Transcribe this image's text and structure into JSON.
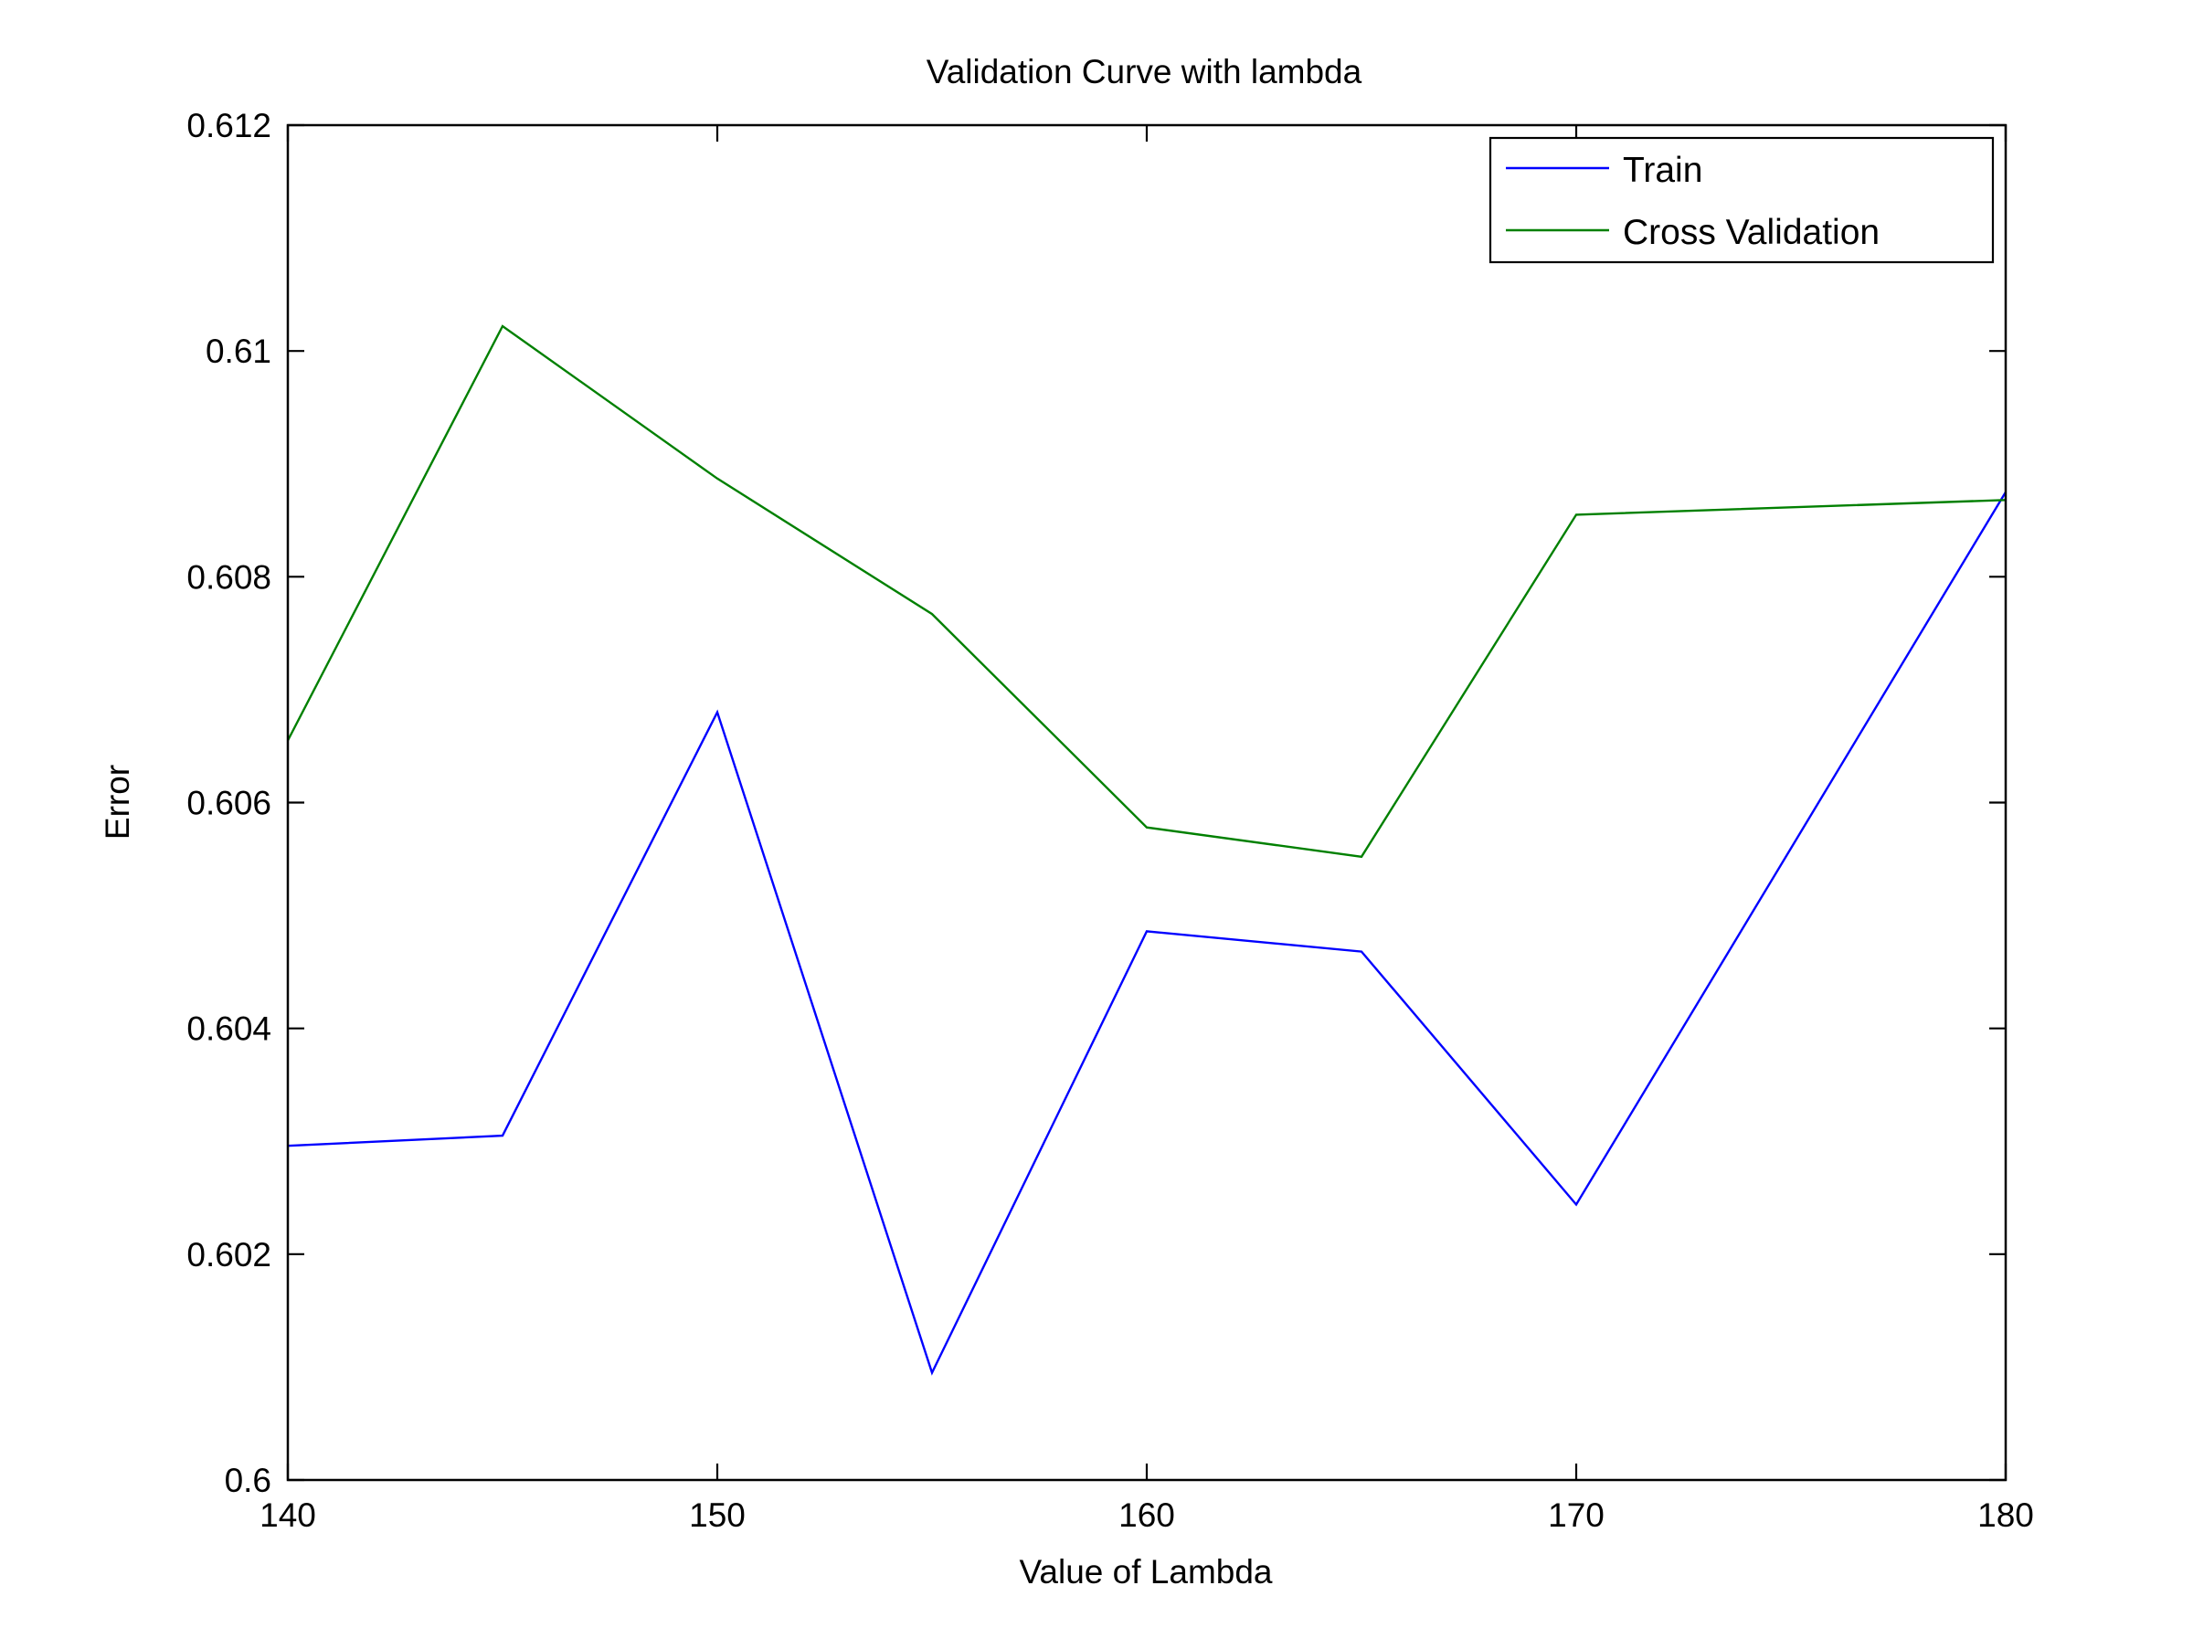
{
  "chart_data": {
    "type": "line",
    "title": "Validation Curve with lambda",
    "xlabel": "Value of Lambda",
    "ylabel": "Error",
    "xlim": [
      140,
      180
    ],
    "ylim": [
      0.6,
      0.612
    ],
    "x_ticks": [
      140,
      150,
      160,
      170,
      180
    ],
    "y_ticks": [
      0.6,
      0.602,
      0.604,
      0.606,
      0.608,
      0.61,
      0.612
    ],
    "x_tick_labels": [
      "140",
      "150",
      "160",
      "170",
      "180"
    ],
    "y_tick_labels": [
      "0.6",
      "0.602",
      "0.604",
      "0.606",
      "0.608",
      "0.61",
      "0.612"
    ],
    "grid": false,
    "legend_position": "top-right",
    "x": [
      140,
      145,
      150,
      155,
      160,
      165,
      170,
      180
    ],
    "series": [
      {
        "name": "Train",
        "color": "#0000ff",
        "values": [
          0.60296,
          0.60305,
          0.6068,
          0.60095,
          0.60486,
          0.60468,
          0.60244,
          0.60875
        ]
      },
      {
        "name": "Cross Validation",
        "color": "#008000",
        "values": [
          0.60655,
          0.61022,
          0.60887,
          0.60767,
          0.60578,
          0.60552,
          0.60855,
          0.60868
        ]
      }
    ]
  }
}
